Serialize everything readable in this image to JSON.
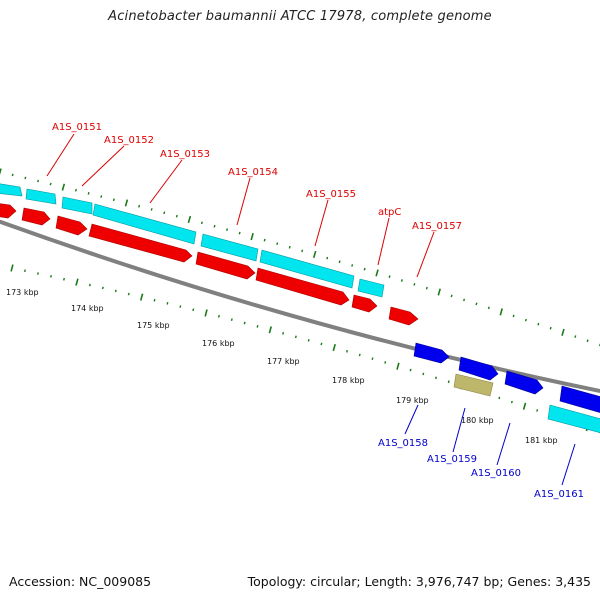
{
  "title": "Acinetobacter baumannii ATCC 17978, complete genome",
  "footer": {
    "accession": "Accession: NC_009085",
    "topology": "Topology: circular; Length: 3,976,747 bp; Genes: 3,435"
  },
  "colors": {
    "forward_cds": "#00e5ee",
    "reverse_cds": "#ee0000",
    "blue_cds": "#0000ee",
    "khaki_cds": "#bdb76b",
    "label_red": "#dd0000",
    "label_blue": "#0000cc",
    "tick_green": "#1a7a1a",
    "backbone": "#888888"
  },
  "kbp_ticks": [
    "173 kbp",
    "174 kbp",
    "175 kbp",
    "176 kbp",
    "177 kbp",
    "178 kbp",
    "179 kbp",
    "180 kbp",
    "181 kbp"
  ],
  "gene_labels_top": [
    "A1S_0151",
    "A1S_0152",
    "A1S_0153",
    "A1S_0154",
    "A1S_0155",
    "atpC",
    "A1S_0157"
  ],
  "gene_labels_bottom": [
    "A1S_0158",
    "A1S_0159",
    "A1S_0160",
    "A1S_0161"
  ]
}
